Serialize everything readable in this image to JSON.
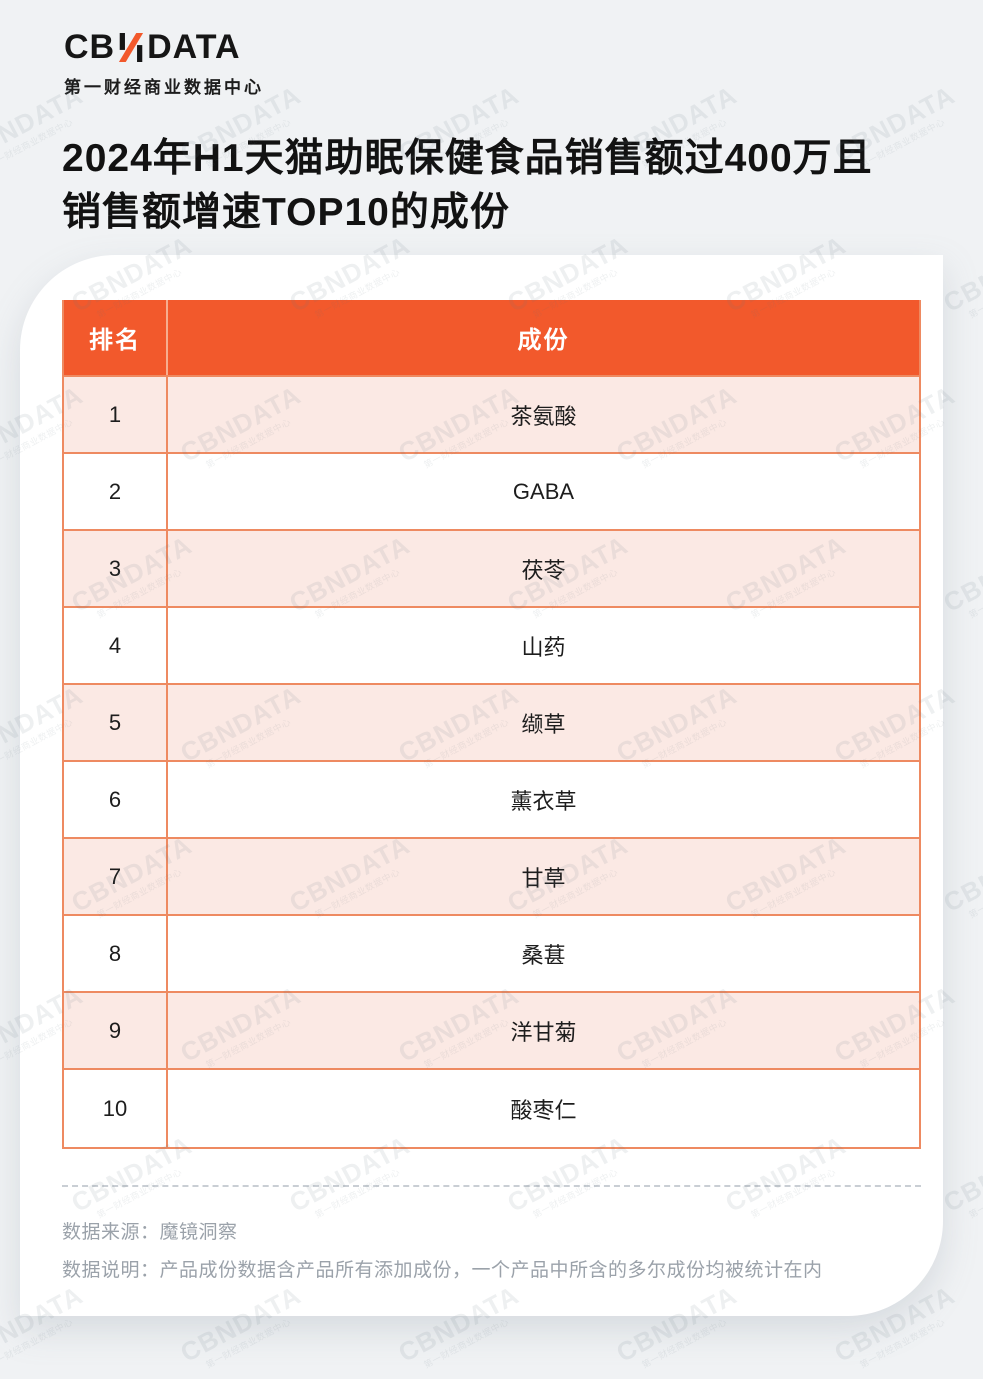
{
  "logo": {
    "text": "CBNDATA",
    "prefix": "CB",
    "suffix": "DATA",
    "subtitle": "第一财经商业数据中心"
  },
  "title": {
    "line1": "2024年H1天猫助眠保健食品销售额过400万且",
    "line2": "销售额增速TOP10的成份"
  },
  "chart_data": {
    "type": "table",
    "title": "2024年H1天猫助眠保健食品销售额过400万且销售额增速TOP10的成份",
    "columns": [
      "排名",
      "成份"
    ],
    "rows": [
      {
        "rank": "1",
        "ingredient": "茶氨酸"
      },
      {
        "rank": "2",
        "ingredient": "GABA"
      },
      {
        "rank": "3",
        "ingredient": "茯苓"
      },
      {
        "rank": "4",
        "ingredient": "山药"
      },
      {
        "rank": "5",
        "ingredient": "缬草"
      },
      {
        "rank": "6",
        "ingredient": "薰衣草"
      },
      {
        "rank": "7",
        "ingredient": "甘草"
      },
      {
        "rank": "8",
        "ingredient": "桑葚"
      },
      {
        "rank": "9",
        "ingredient": "洋甘菊"
      },
      {
        "rank": "10",
        "ingredient": "酸枣仁"
      }
    ]
  },
  "footer": {
    "source": "数据来源：魔镜洞察",
    "note": "数据说明：产品成份数据含产品所有添加成份，一个产品中所含的多尔成份均被统计在内"
  },
  "watermark": {
    "line1": "CBNDATA",
    "line2": "第一财经商业数据中心"
  },
  "colors": {
    "page_background": "#F0F2F4",
    "card_background": "#FFFFFF",
    "header_orange": "#F2592C",
    "row_pink": "#FBE9E4",
    "table_border": "#EE8A61",
    "footer_gray": "#9BA2AA",
    "logo_accent_orange": "#F2592C",
    "text_dark": "#161616"
  }
}
